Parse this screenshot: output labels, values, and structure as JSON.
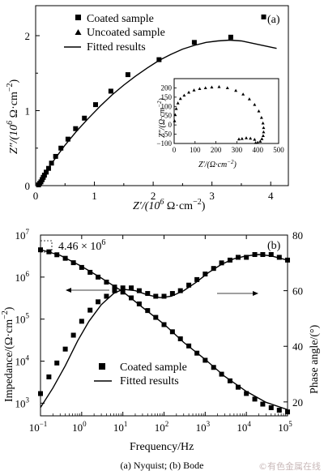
{
  "caption": "(a) Nyquist; (b) Bode",
  "watermark": "©有色金属在线",
  "colors": {
    "ink": "#000000",
    "background": "#ffffff"
  },
  "chart_data": [
    {
      "type": "scatter",
      "panel_label": "(a)",
      "xlabel_main": "Z′/(10",
      "xlabel_sup": "6",
      "xlabel_rest": " Ω·cm",
      "xlabel_sup2": "−2",
      "xlabel_end": ")",
      "ylabel_main": "Z″/(10",
      "xlim": [
        0,
        4.3
      ],
      "ylim": [
        0,
        2.4
      ],
      "xticks": [
        "0",
        "1",
        "2",
        "3",
        "4"
      ],
      "yticks": [
        "0",
        "1",
        "2"
      ],
      "legend": [
        "Coated sample",
        "Uncoated sample",
        "Fitted results"
      ],
      "legend_position": "top-right",
      "series": [
        {
          "name": "Coated sample",
          "marker": "square",
          "x": [
            0.05,
            0.07,
            0.09,
            0.11,
            0.13,
            0.15,
            0.18,
            0.22,
            0.27,
            0.34,
            0.43,
            0.55,
            0.68,
            0.83,
            1.02,
            1.28,
            1.57,
            2.1,
            2.7,
            3.32,
            3.88
          ],
          "y": [
            0.01,
            0.03,
            0.05,
            0.08,
            0.11,
            0.14,
            0.18,
            0.23,
            0.3,
            0.39,
            0.5,
            0.62,
            0.76,
            0.9,
            1.08,
            1.26,
            1.48,
            1.68,
            1.91,
            1.98,
            2.25
          ]
        },
        {
          "name": "Fitted results",
          "marker": "line",
          "x": [
            0.02,
            0.1,
            0.2,
            0.35,
            0.5,
            0.7,
            0.9,
            1.1,
            1.3,
            1.5,
            1.7,
            1.9,
            2.1,
            2.3,
            2.5,
            2.7,
            2.9,
            3.1,
            3.3,
            3.5,
            3.8,
            4.1
          ],
          "y": [
            0.0,
            0.1,
            0.22,
            0.38,
            0.54,
            0.73,
            0.9,
            1.06,
            1.21,
            1.34,
            1.46,
            1.57,
            1.67,
            1.75,
            1.82,
            1.87,
            1.91,
            1.93,
            1.94,
            1.93,
            1.88,
            1.83
          ]
        }
      ],
      "inset": {
        "type": "scatter",
        "ylabel_main": "Z″/(Ω·cm",
        "xlabel_main": "Z′/(Ω·cm",
        "sup": "−2",
        "xlim": [
          0,
          500
        ],
        "ylim": [
          -100,
          250
        ],
        "xticks": [
          "0",
          "100",
          "200",
          "300",
          "400",
          "500"
        ],
        "yticks": [
          "−100",
          "−50",
          "0",
          "50",
          "100",
          "150",
          "200"
        ],
        "series": [
          {
            "name": "Uncoated sample",
            "marker": "triangle",
            "x": [
              2,
              5,
              10,
              18,
              30,
              48,
              70,
              95,
              122,
              150,
              180,
              215,
              255,
              295,
              330,
              360,
              385,
              405,
              418,
              425,
              428,
              428,
              426,
              420,
              412,
              400,
              390,
              385,
              365,
              345,
              325,
              310
            ],
            "y": [
              22,
              55,
              88,
              118,
              142,
              160,
              176,
              188,
              196,
              200,
              204,
              206,
              200,
              186,
              166,
              140,
              110,
              75,
              40,
              10,
              -15,
              -38,
              -58,
              -75,
              -88,
              -95,
              -96,
              -78,
              -72,
              -70,
              -74,
              -76
            ]
          }
        ]
      }
    },
    {
      "type": "line",
      "panel_label": "(b)",
      "xlabel": "Frequency/Hz",
      "ylabel_left_main": "Impedance/(Ω·cm",
      "ylabel_left_sup": "−2",
      "ylabel_left_end": ")",
      "ylabel_right_main": "Phase angle/(°)",
      "x_scale": "log",
      "y_left_scale": "log",
      "xlim": [
        0.1,
        100000
      ],
      "ylim_left": [
        500,
        10000000
      ],
      "ylim_right": [
        15,
        80
      ],
      "xticks": [
        "10",
        "10",
        "10",
        "10",
        "10",
        "10",
        "10"
      ],
      "xtick_exponents": [
        "−1",
        "0",
        "1",
        "2",
        "3",
        "4",
        "5"
      ],
      "yticks_left": [
        "10",
        "10",
        "10",
        "10",
        "10"
      ],
      "yticks_left_exponents": [
        "3",
        "4",
        "5",
        "6",
        "7"
      ],
      "yticks_right": [
        "20",
        "40",
        "60",
        "80"
      ],
      "annotation": "4.46 × 10",
      "annotation_exp": "6",
      "legend": [
        "Coated sample",
        "Fitted results"
      ],
      "legend_position": "bottom-center",
      "series": [
        {
          "name": "Coated sample",
          "axis": "left",
          "marker": "square",
          "x": [
            0.1,
            0.16,
            0.25,
            0.4,
            0.63,
            1.0,
            1.6,
            2.5,
            4.0,
            6.3,
            10,
            16,
            25,
            40,
            63,
            100,
            160,
            250,
            400,
            630,
            1000,
            1600,
            2500,
            4000,
            6300,
            10000,
            16000,
            25000,
            40000,
            63000,
            100000
          ],
          "y": [
            4460000,
            4000000,
            3400000,
            2800000,
            2200000,
            1700000,
            1300000,
            1000000,
            760000,
            580000,
            440000,
            320000,
            230000,
            160000,
            110000,
            74000,
            50000,
            34000,
            23000,
            15500,
            10500,
            7100,
            4900,
            3400,
            2400,
            1700,
            1250,
            950,
            780,
            680,
            620
          ]
        },
        {
          "name": "Coated sample",
          "axis": "right",
          "marker": "square",
          "x": [
            0.1,
            0.16,
            0.25,
            0.4,
            0.63,
            1.0,
            1.6,
            2.5,
            4.0,
            6.3,
            10,
            16,
            25,
            40,
            63,
            100,
            160,
            250,
            400,
            630,
            1000,
            1600,
            2500,
            4000,
            6300,
            10000,
            16000,
            25000,
            40000,
            63000,
            100000
          ],
          "y": [
            23,
            29,
            34,
            39,
            44,
            49,
            53,
            56,
            58,
            60,
            61,
            61,
            60,
            59,
            58,
            58,
            59,
            60,
            62,
            64,
            66,
            68,
            70,
            71,
            72,
            72,
            73,
            73,
            73,
            72,
            71
          ]
        },
        {
          "name": "Fitted results",
          "axis": "left",
          "marker": "line",
          "x": [
            0.1,
            0.3,
            1,
            3,
            10,
            30,
            100,
            300,
            1000,
            3000,
            10000,
            30000,
            100000
          ],
          "y": [
            4500000,
            3300000,
            1800000,
            950000,
            450000,
            190000,
            76000,
            28000,
            11000,
            4300,
            1900,
            1050,
            700
          ]
        },
        {
          "name": "Fitted results",
          "axis": "right",
          "marker": "line",
          "x": [
            0.1,
            0.2,
            0.4,
            0.8,
            1.5,
            3,
            6,
            10,
            20,
            40,
            80,
            150,
            300,
            600,
            1200,
            2500,
            5000,
            10000,
            20000,
            40000,
            100000
          ],
          "y": [
            18,
            25,
            33,
            42,
            49,
            55,
            59,
            60.5,
            60,
            58.5,
            57.5,
            58,
            60,
            63,
            66.5,
            69.5,
            71.5,
            72.5,
            73,
            72.5,
            71
          ]
        }
      ]
    }
  ]
}
